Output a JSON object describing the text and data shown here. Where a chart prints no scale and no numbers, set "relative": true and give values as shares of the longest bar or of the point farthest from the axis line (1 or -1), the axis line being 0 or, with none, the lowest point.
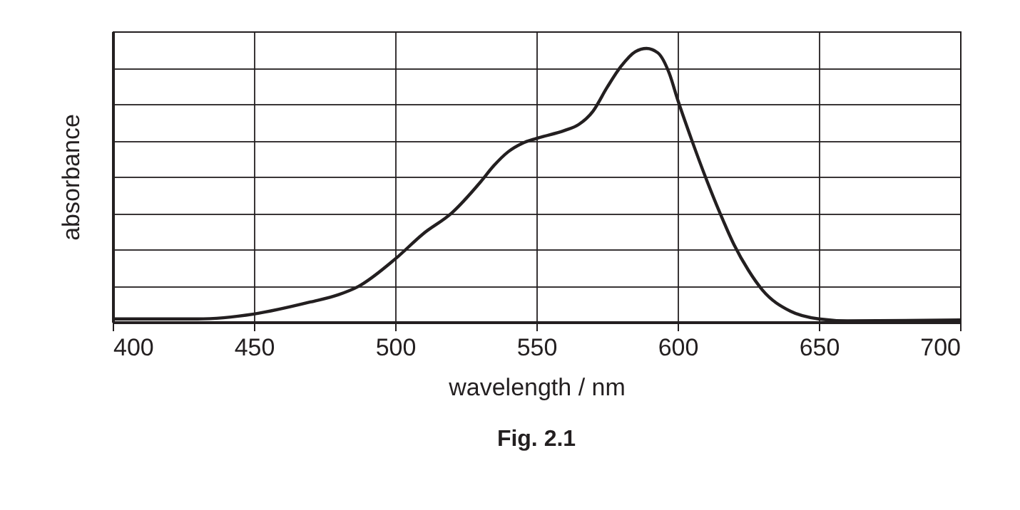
{
  "chart_data": {
    "type": "line",
    "title": "Fig. 2.1",
    "xlabel": "wavelength / nm",
    "ylabel": "absorbance",
    "relative": true,
    "grid": true,
    "xlim": [
      400,
      700
    ],
    "xticks": [
      400,
      450,
      500,
      550,
      600,
      650,
      700
    ],
    "x": [
      400,
      430,
      450,
      470,
      480,
      487,
      500,
      510,
      520,
      530,
      535,
      540,
      545,
      550,
      560,
      565,
      570,
      575,
      580,
      585,
      589,
      593,
      597,
      600,
      605,
      610,
      615,
      620,
      625,
      630,
      640,
      650,
      660,
      700
    ],
    "series": [
      {
        "color": "#231f20",
        "values": [
          0.011,
          0.011,
          0.029,
          0.073,
          0.1,
          0.13,
          0.23,
          0.323,
          0.398,
          0.509,
          0.572,
          0.622,
          0.653,
          0.671,
          0.7,
          0.722,
          0.77,
          0.857,
          0.935,
          0.988,
          1,
          0.984,
          0.91,
          0.813,
          0.665,
          0.526,
          0.398,
          0.282,
          0.19,
          0.117,
          0.039,
          0.011,
          0.004,
          0.007
        ]
      }
    ]
  }
}
